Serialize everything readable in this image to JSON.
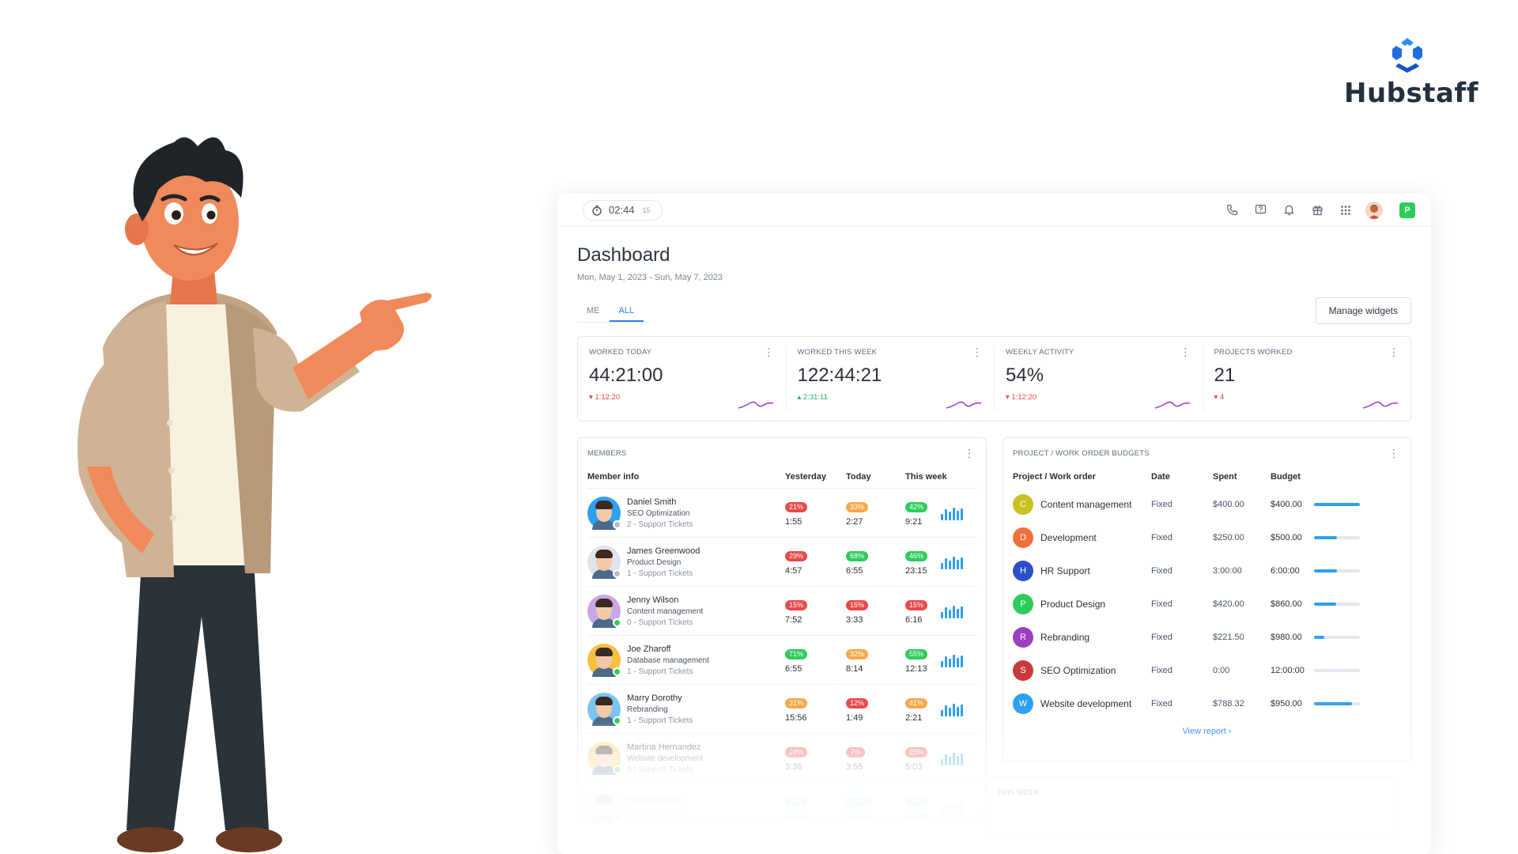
{
  "brand": {
    "name": "Hubstaff",
    "color": "#1f7fe6",
    "icon": "hubstaff-logo-icon"
  },
  "topbar": {
    "timer": {
      "time": "02:44",
      "seconds": "15",
      "icon": "stopwatch-icon"
    },
    "icons": [
      "phone-icon",
      "help-icon",
      "bell-icon",
      "gift-icon",
      "apps-grid-icon"
    ],
    "org_initial": "P"
  },
  "page": {
    "title": "Dashboard",
    "date_range": "Mon, May 1, 2023 - Sun, May 7, 2023",
    "tabs": [
      {
        "label": "ME",
        "active": false
      },
      {
        "label": "ALL",
        "active": true
      }
    ],
    "manage_widgets": "Manage widgets"
  },
  "stats": [
    {
      "label": "WORKED TODAY",
      "value": "44:21:00",
      "delta": "1:12:20",
      "direction": "down"
    },
    {
      "label": "WORKED THIS WEEK",
      "value": "122:44:21",
      "delta": "2:31:11",
      "direction": "up"
    },
    {
      "label": "WEEKLY ACTIVITY",
      "value": "54%",
      "delta": "1:12:20",
      "direction": "down"
    },
    {
      "label": "PROJECTS WORKED",
      "value": "21",
      "delta": "4",
      "direction": "down"
    }
  ],
  "members": {
    "title": "MEMBERS",
    "columns": [
      "Member info",
      "Yesterday",
      "Today",
      "This week"
    ],
    "rows": [
      {
        "name": "Daniel Smith",
        "project": "SEO Optimization",
        "tickets": "2 - Support Tickets",
        "status_color": "#b7bcc5",
        "avatar_bg": "#2f9ff0",
        "yesterday": {
          "pct": "21%",
          "color": "red",
          "time": "1:55"
        },
        "today": {
          "pct": "33%",
          "color": "orange",
          "time": "2:27"
        },
        "week": {
          "pct": "42%",
          "color": "green",
          "time": "9:21"
        }
      },
      {
        "name": "James Greenwood",
        "project": "Product Design",
        "tickets": "1 - Support Tickets",
        "status_color": "#b7bcc5",
        "avatar_bg": "#dfe3e8",
        "yesterday": {
          "pct": "29%",
          "color": "red",
          "time": "4:57"
        },
        "today": {
          "pct": "68%",
          "color": "green",
          "time": "6:55"
        },
        "week": {
          "pct": "46%",
          "color": "green",
          "time": "23:15"
        }
      },
      {
        "name": "Jenny Wilson",
        "project": "Content management",
        "tickets": "0 - Support Tickets",
        "status_color": "#2ecc5a",
        "avatar_bg": "#c8a6e8",
        "yesterday": {
          "pct": "15%",
          "color": "red",
          "time": "7:52"
        },
        "today": {
          "pct": "15%",
          "color": "red",
          "time": "3:33"
        },
        "week": {
          "pct": "15%",
          "color": "red",
          "time": "6:16"
        }
      },
      {
        "name": "Joe Zharoff",
        "project": "Database management",
        "tickets": "1 - Support Tickets",
        "status_color": "#2ecc5a",
        "avatar_bg": "#f6c040",
        "yesterday": {
          "pct": "71%",
          "color": "green",
          "time": "6:55"
        },
        "today": {
          "pct": "32%",
          "color": "orange",
          "time": "8:14"
        },
        "week": {
          "pct": "55%",
          "color": "green",
          "time": "12:13"
        }
      },
      {
        "name": "Marry Dorothy",
        "project": "Rebranding",
        "tickets": "1 - Support Tickets",
        "status_color": "#2ecc5a",
        "avatar_bg": "#7cc4f0",
        "yesterday": {
          "pct": "31%",
          "color": "orange",
          "time": "15:56"
        },
        "today": {
          "pct": "12%",
          "color": "red",
          "time": "1:49"
        },
        "week": {
          "pct": "41%",
          "color": "orange",
          "time": "2:21"
        }
      },
      {
        "name": "Martina Hernandez",
        "project": "Website development",
        "tickets": "0 - Support Tickets",
        "status_color": "#2ecc5a",
        "avatar_bg": "#f6d06a",
        "yesterday": {
          "pct": "24%",
          "color": "red",
          "time": "3:38"
        },
        "today": {
          "pct": "7%",
          "color": "red",
          "time": "3:55"
        },
        "week": {
          "pct": "25%",
          "color": "red",
          "time": "5:03"
        }
      },
      {
        "name": "West Williams",
        "project": "Product Design",
        "tickets": "",
        "status_color": "#2ecc5a",
        "avatar_bg": "#e3e6ea",
        "yesterday": {
          "pct": "54%",
          "color": "green",
          "time": "12:43"
        },
        "today": {
          "pct": "100%",
          "color": "green",
          "time": "17:51"
        },
        "week": {
          "pct": "54%",
          "color": "green",
          "time": "13:32"
        }
      }
    ]
  },
  "budgets": {
    "title": "PROJECT / WORK ORDER BUDGETS",
    "columns": [
      "Project / Work order",
      "Date",
      "Spent",
      "Budget"
    ],
    "rows": [
      {
        "initial": "C",
        "color": "#c9c022",
        "name": "Content management",
        "date": "Fixed",
        "spent": "$400.00",
        "budget": "$400.00",
        "progress": 1.0
      },
      {
        "initial": "D",
        "color": "#f0703a",
        "name": "Development",
        "date": "Fixed",
        "spent": "$250.00",
        "budget": "$500.00",
        "progress": 0.5
      },
      {
        "initial": "H",
        "color": "#2b4fc8",
        "name": "HR Support",
        "date": "Fixed",
        "spent": "3:00:00",
        "budget": "6:00:00",
        "progress": 0.5
      },
      {
        "initial": "P",
        "color": "#2ecc5a",
        "name": "Product Design",
        "date": "Fixed",
        "spent": "$420.00",
        "budget": "$860.00",
        "progress": 0.49
      },
      {
        "initial": "R",
        "color": "#9b3fc0",
        "name": "Rebranding",
        "date": "Fixed",
        "spent": "$221.50",
        "budget": "$980.00",
        "progress": 0.23
      },
      {
        "initial": "S",
        "color": "#c83a3a",
        "name": "SEO Optimization",
        "date": "Fixed",
        "spent": "0:00",
        "budget": "12:00:00",
        "progress": 0.0
      },
      {
        "initial": "W",
        "color": "#2f9ff0",
        "name": "Website development",
        "date": "Fixed",
        "spent": "$788.32",
        "budget": "$950.00",
        "progress": 0.83
      }
    ],
    "view_report": "View report"
  },
  "this_week": {
    "title": "THIS WEEK"
  }
}
